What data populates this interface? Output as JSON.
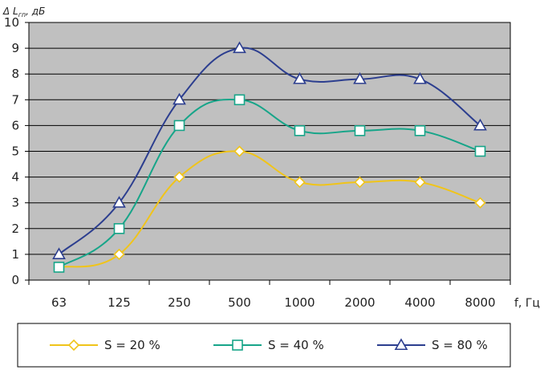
{
  "chart_data": {
    "type": "line",
    "ylabel_main": "Δ L",
    "ylabel_sub": "гп",
    "ylabel_unit": ", дБ",
    "xlabel": "f, Гц",
    "categories": [
      "63",
      "125",
      "250",
      "500",
      "1000",
      "2000",
      "4000",
      "8000"
    ],
    "ylim": [
      0,
      10
    ],
    "yticks": [
      "0",
      "1",
      "2",
      "3",
      "4",
      "5",
      "6",
      "7",
      "8",
      "9",
      "10"
    ],
    "grid": true,
    "plot_background": "#c0c0c0",
    "legend_position": "bottom",
    "series": [
      {
        "name": "S = 20 %",
        "values": [
          0.5,
          1.0,
          4.0,
          5.0,
          3.8,
          3.8,
          3.8,
          3.0
        ],
        "color": "#f0c41a",
        "marker": "diamond"
      },
      {
        "name": "S = 40 %",
        "values": [
          0.5,
          2.0,
          6.0,
          7.0,
          5.8,
          5.8,
          5.8,
          5.0
        ],
        "color": "#17a589",
        "marker": "square"
      },
      {
        "name": "S = 80 %",
        "values": [
          1.0,
          3.0,
          7.0,
          9.0,
          7.8,
          7.8,
          7.8,
          6.0
        ],
        "color": "#2c3e8f",
        "marker": "triangle"
      }
    ]
  }
}
